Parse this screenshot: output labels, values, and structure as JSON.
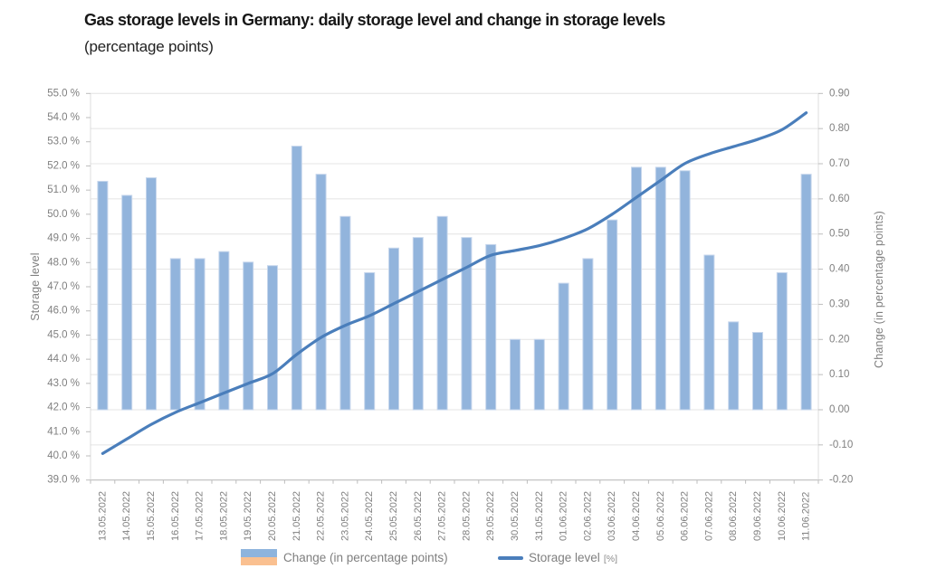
{
  "chart_data": {
    "type": "bar+line",
    "title": "Gas storage levels in Germany: daily storage level and change in storage levels",
    "subtitle": "(percentage points)",
    "categories": [
      "13.05.2022",
      "14.05.2022",
      "15.05.2022",
      "16.05.2022",
      "17.05.2022",
      "18.05.2022",
      "19.05.2022",
      "20.05.2022",
      "21.05.2022",
      "22.05.2022",
      "23.05.2022",
      "24.05.2022",
      "25.05.2022",
      "26.05.2022",
      "27.05.2022",
      "28.05.2022",
      "29.05.2022",
      "30.05.2022",
      "31.05.2022",
      "01.06.2022",
      "02.06.2022",
      "03.06.2022",
      "04.06.2022",
      "05.06.2022",
      "06.06.2022",
      "07.06.2022",
      "08.06.2022",
      "09.06.2022",
      "10.06.2022",
      "11.06.2022"
    ],
    "series": [
      {
        "name": "Change (in percentage points)",
        "type": "bar",
        "axis": "right",
        "values": [
          0.65,
          0.61,
          0.66,
          0.43,
          0.43,
          0.45,
          0.42,
          0.41,
          0.75,
          0.67,
          0.55,
          0.39,
          0.46,
          0.49,
          0.55,
          0.49,
          0.47,
          0.2,
          0.2,
          0.36,
          0.43,
          0.54,
          0.69,
          0.69,
          0.68,
          0.44,
          0.25,
          0.22,
          0.39,
          0.67
        ]
      },
      {
        "name": "Storage level [%]",
        "type": "line",
        "axis": "left",
        "values": [
          40.1,
          40.7,
          41.3,
          41.8,
          42.2,
          42.6,
          43.0,
          43.4,
          44.2,
          44.9,
          45.4,
          45.8,
          46.3,
          46.8,
          47.3,
          47.8,
          48.3,
          48.5,
          48.7,
          49.0,
          49.4,
          50.0,
          50.7,
          51.4,
          52.1,
          52.5,
          52.8,
          53.1,
          53.5,
          54.2
        ]
      }
    ],
    "left_axis": {
      "title": "Storage level",
      "min": 39.0,
      "max": 55.0,
      "step": 1.0,
      "tick_labels": [
        "55.0 %",
        "54.0 %",
        "53.0 %",
        "52.0 %",
        "51.0 %",
        "50.0 %",
        "49.0 %",
        "48.0 %",
        "47.0 %",
        "46.0 %",
        "45.0 %",
        "44.0 %",
        "43.0 %",
        "42.0 %",
        "41.0 %",
        "40.0 %",
        "39.0 %"
      ]
    },
    "right_axis": {
      "title": "Change (in percentage points)",
      "min": -0.2,
      "max": 0.9,
      "step": 0.1,
      "tick_labels": [
        "0.90",
        "0.80",
        "0.70",
        "0.60",
        "0.50",
        "0.40",
        "0.30",
        "0.20",
        "0.10",
        "0.00",
        "-0.10",
        "-0.20"
      ]
    },
    "legend": {
      "change": {
        "label": "Change (in percentage points)",
        "colors": [
          "#8eb4dd",
          "#fac090"
        ]
      },
      "storage": {
        "label": "Storage level",
        "unit": "[%]"
      }
    },
    "grid": "horizontal",
    "legend_position": "bottom-center",
    "colors": {
      "bar": "#92b4dc",
      "bar_border": "#c6d6ec",
      "line": "#4a7ebb",
      "grid": "#e4e4e4",
      "axis": "#bdbdbd",
      "tick_text": "#7f7f7f",
      "title_text": "#181818"
    }
  }
}
